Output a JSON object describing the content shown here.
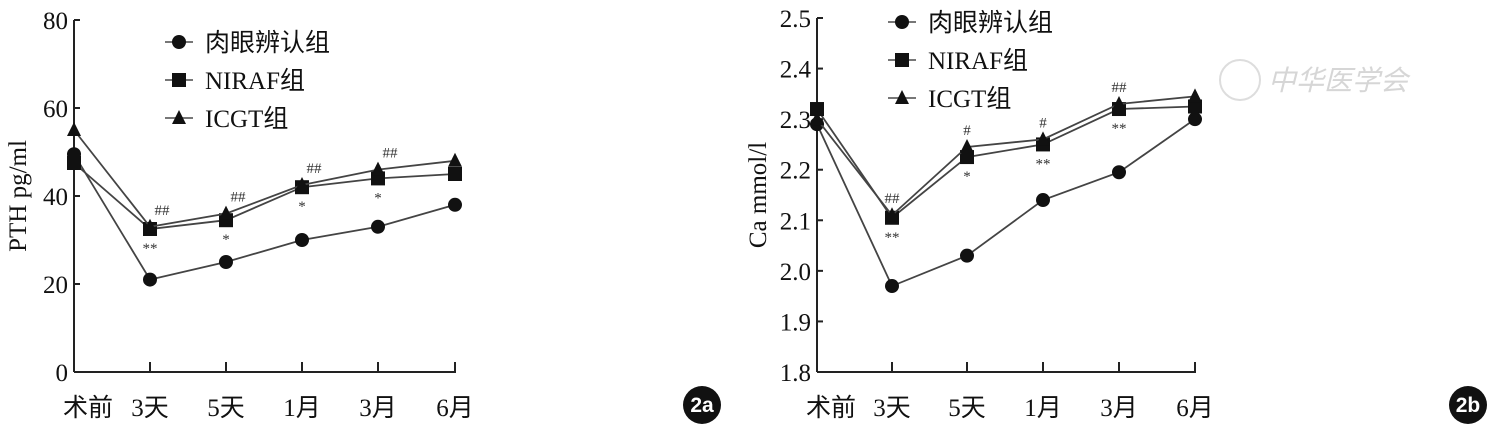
{
  "chart_data": [
    {
      "type": "line",
      "panel_label": "2a",
      "ylabel": "PTH pg/ml",
      "xlabel": "",
      "categories": [
        "术前",
        "3天",
        "5天",
        "1月",
        "3月",
        "6月"
      ],
      "ylim": [
        0,
        80
      ],
      "yticks": [
        "0",
        "20",
        "40",
        "60",
        "80"
      ],
      "grid": false,
      "legend_position": "top-left",
      "series": [
        {
          "name": "肉眼辨认组",
          "marker": "circle",
          "values": [
            49.5,
            21,
            25,
            30,
            33,
            38
          ]
        },
        {
          "name": "NIRAF组",
          "marker": "square",
          "values": [
            47.5,
            32.5,
            34.5,
            42,
            44,
            45
          ]
        },
        {
          "name": "ICGT组",
          "marker": "triangle",
          "values": [
            55,
            33,
            36,
            42.5,
            46,
            48
          ]
        }
      ],
      "annotations_above": [
        "",
        "##",
        "##",
        "##",
        "##",
        ""
      ],
      "annotations_below": [
        "",
        "**",
        "*",
        "*",
        "*",
        ""
      ]
    },
    {
      "type": "line",
      "panel_label": "2b",
      "ylabel": "Ca mmol/l",
      "xlabel": "",
      "categories": [
        "术前",
        "3天",
        "5天",
        "1月",
        "3月",
        "6月"
      ],
      "ylim": [
        1.8,
        2.5
      ],
      "yticks": [
        "1.8",
        "1.9",
        "2.0",
        "2.1",
        "2.2",
        "2.3",
        "2.4",
        "2.5"
      ],
      "grid": false,
      "legend_position": "top-left",
      "series": [
        {
          "name": "肉眼辨认组",
          "marker": "circle",
          "values": [
            2.29,
            1.97,
            2.03,
            2.14,
            2.195,
            2.3
          ]
        },
        {
          "name": "NIRAF组",
          "marker": "square",
          "values": [
            2.32,
            2.105,
            2.225,
            2.25,
            2.32,
            2.325
          ]
        },
        {
          "name": "ICGT组",
          "marker": "triangle",
          "values": [
            2.3,
            2.11,
            2.245,
            2.26,
            2.33,
            2.345
          ]
        }
      ],
      "annotations_above": [
        "",
        "##",
        "#",
        "#",
        "##",
        ""
      ],
      "annotations_below": [
        "",
        "**",
        "*",
        "**",
        "**",
        ""
      ],
      "watermark": "中华医学会"
    }
  ]
}
